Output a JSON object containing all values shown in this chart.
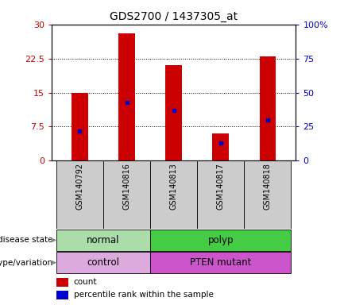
{
  "title": "GDS2700 / 1437305_at",
  "samples": [
    "GSM140792",
    "GSM140816",
    "GSM140813",
    "GSM140817",
    "GSM140818"
  ],
  "counts": [
    15,
    28,
    21,
    6,
    23
  ],
  "percentile_ranks": [
    22,
    43,
    37,
    13,
    30
  ],
  "ylim_left": [
    0,
    30
  ],
  "ylim_right": [
    0,
    100
  ],
  "yticks_left": [
    0,
    7.5,
    15,
    22.5,
    30
  ],
  "yticks_right": [
    0,
    25,
    50,
    75,
    100
  ],
  "ytick_labels_left": [
    "0",
    "7.5",
    "15",
    "22.5",
    "30"
  ],
  "ytick_labels_right": [
    "0",
    "25",
    "50",
    "75",
    "100%"
  ],
  "bar_color": "#cc0000",
  "dot_color": "#0000cc",
  "main_bg": "#ffffff",
  "xtick_bg": "#cccccc",
  "disease_groups": [
    {
      "label": "normal",
      "indices": [
        0,
        1
      ],
      "color": "#aaddaa"
    },
    {
      "label": "polyp",
      "indices": [
        2,
        3,
        4
      ],
      "color": "#44cc44"
    }
  ],
  "genotype_groups": [
    {
      "label": "control",
      "indices": [
        0,
        1
      ],
      "color": "#ddaadd"
    },
    {
      "label": "PTEN mutant",
      "indices": [
        2,
        3,
        4
      ],
      "color": "#cc55cc"
    }
  ],
  "row_labels": [
    "disease state",
    "genotype/variation"
  ],
  "legend_items": [
    {
      "label": "count",
      "color": "#cc0000"
    },
    {
      "label": "percentile rank within the sample",
      "color": "#0000cc"
    }
  ],
  "background_color": "#ffffff"
}
